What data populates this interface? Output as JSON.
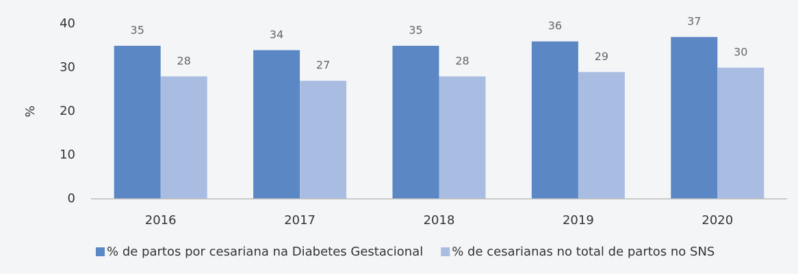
{
  "chart_data": {
    "type": "bar",
    "y_label": "%",
    "categories": [
      "2016",
      "2017",
      "2018",
      "2019",
      "2020"
    ],
    "series": [
      {
        "name": "% de partos por cesariana na Diabetes Gestacional",
        "color": "#5b87c5",
        "values": [
          35,
          34,
          35,
          36,
          37
        ]
      },
      {
        "name": "% de cesarianas no total de partos no SNS",
        "color": "#a9bde3",
        "values": [
          28,
          27,
          28,
          29,
          30
        ]
      }
    ],
    "ylim": [
      0,
      40
    ],
    "yticks": [
      0,
      10,
      20,
      30,
      40
    ],
    "grid": false,
    "legend": "bottom"
  }
}
